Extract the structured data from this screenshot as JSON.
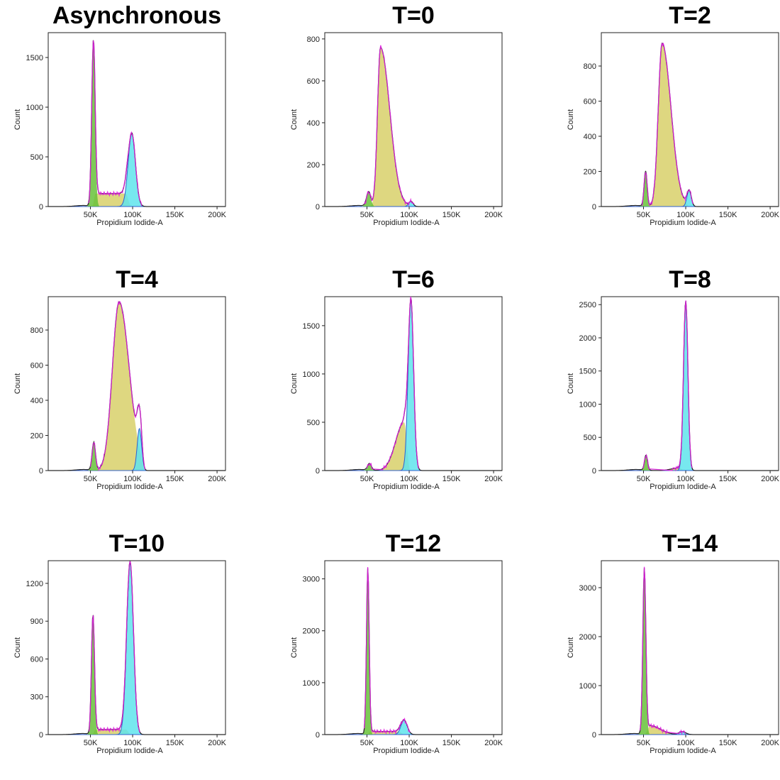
{
  "colors": {
    "g1_fill": "#67c23a",
    "s_fill": "#d8d06a",
    "g2_fill": "#5fe4ec",
    "fit_line": "#e020e0",
    "data_line": "#2a2a2a",
    "g2_edge": "#3060d0"
  },
  "chart_data": [
    {
      "type": "area",
      "title": "Asynchronous",
      "xlabel": "Propidium Iodide-A",
      "ylabel": "Count",
      "xticks": [
        {
          "v": 50000,
          "label": "50K"
        },
        {
          "v": 100000,
          "label": "100K"
        },
        {
          "v": 150000,
          "label": "150K"
        },
        {
          "v": 200000,
          "label": "200K"
        }
      ],
      "yticks": [
        0,
        500,
        1000,
        1500
      ],
      "xlim": [
        0,
        210000
      ],
      "ylim": [
        0,
        1750
      ],
      "g1": {
        "mean": 53500,
        "sd": 2000,
        "height": 1650
      },
      "s": {
        "start": 56000,
        "end": 92000,
        "height": 130
      },
      "g2": {
        "mean": 99000,
        "sd": 4300,
        "height": 740
      },
      "fit_peak": 1720
    },
    {
      "type": "area",
      "title": "T=0",
      "xlabel": "Propidium Iodide-A",
      "ylabel": "Count",
      "xticks": [
        {
          "v": 50000,
          "label": "50K"
        },
        {
          "v": 100000,
          "label": "100K"
        },
        {
          "v": 150000,
          "label": "150K"
        },
        {
          "v": 200000,
          "label": "200K"
        }
      ],
      "yticks": [
        0,
        200,
        400,
        600,
        800
      ],
      "xlim": [
        0,
        210000
      ],
      "ylim": [
        0,
        830
      ],
      "g1": {
        "mean": 52000,
        "sd": 2500,
        "height": 70
      },
      "s": {
        "start": 55000,
        "end": 96000,
        "height": 760,
        "peak_at": 66000,
        "rise_sd": 3500,
        "fall_sd": 11000
      },
      "g2": {
        "mean": 102000,
        "sd": 2600,
        "height": 25
      },
      "fit_peak": 820
    },
    {
      "type": "area",
      "title": "T=2",
      "xlabel": "Propidium Iodide-A",
      "ylabel": "Count",
      "xticks": [
        {
          "v": 50000,
          "label": "50K"
        },
        {
          "v": 100000,
          "label": "100K"
        },
        {
          "v": 150000,
          "label": "150K"
        },
        {
          "v": 200000,
          "label": "200K"
        }
      ],
      "yticks": [
        0,
        200,
        400,
        600,
        800
      ],
      "xlim": [
        0,
        210000
      ],
      "ylim": [
        0,
        990
      ],
      "g1": {
        "mean": 52500,
        "sd": 1800,
        "height": 200
      },
      "s": {
        "start": 56000,
        "end": 100000,
        "height": 930,
        "peak_at": 72000,
        "rise_sd": 4500,
        "fall_sd": 10500
      },
      "g2": {
        "mean": 104000,
        "sd": 2500,
        "height": 95
      },
      "fit_peak": 980
    },
    {
      "type": "area",
      "title": "T=4",
      "xlabel": "Propidium Iodide-A",
      "ylabel": "Count",
      "xticks": [
        {
          "v": 50000,
          "label": "50K"
        },
        {
          "v": 100000,
          "label": "100K"
        },
        {
          "v": 150000,
          "label": "150K"
        },
        {
          "v": 200000,
          "label": "200K"
        }
      ],
      "yticks": [
        0,
        200,
        400,
        600,
        800
      ],
      "xlim": [
        0,
        210000
      ],
      "ylim": [
        0,
        990
      ],
      "g1": {
        "mean": 54000,
        "sd": 2000,
        "height": 160
      },
      "s": {
        "start": 57000,
        "end": 110000,
        "height": 960,
        "peak_at": 84000,
        "rise_sd": 8000,
        "fall_sd": 12000
      },
      "g2": {
        "mean": 108000,
        "sd": 2600,
        "height": 240
      },
      "fit_peak": 980
    },
    {
      "type": "area",
      "title": "T=6",
      "xlabel": "Propidium Iodide-A",
      "ylabel": "Count",
      "xticks": [
        {
          "v": 50000,
          "label": "50K"
        },
        {
          "v": 100000,
          "label": "100K"
        },
        {
          "v": 150000,
          "label": "150K"
        },
        {
          "v": 200000,
          "label": "200K"
        }
      ],
      "yticks": [
        0,
        500,
        1000,
        1500
      ],
      "xlim": [
        0,
        210000
      ],
      "ylim": [
        0,
        1800
      ],
      "g1": {
        "mean": 53000,
        "sd": 2300,
        "height": 70
      },
      "s": {
        "start": 56000,
        "end": 98000,
        "height": 500,
        "peak_at": 94000,
        "rise_sd": 10000,
        "fall_sd": 3000
      },
      "g2": {
        "mean": 102000,
        "sd": 3200,
        "height": 1790
      },
      "fit_peak": 1800
    },
    {
      "type": "area",
      "title": "T=8",
      "xlabel": "Propidium Iodide-A",
      "ylabel": "Count",
      "xticks": [
        {
          "v": 50000,
          "label": "50K"
        },
        {
          "v": 100000,
          "label": "100K"
        },
        {
          "v": 150000,
          "label": "150K"
        },
        {
          "v": 200000,
          "label": "200K"
        }
      ],
      "yticks": [
        0,
        500,
        1000,
        1500,
        2000,
        2500
      ],
      "xlim": [
        0,
        210000
      ],
      "ylim": [
        0,
        2620
      ],
      "g1": {
        "mean": 53000,
        "sd": 1800,
        "height": 230
      },
      "s": {
        "start": 56000,
        "end": 96000,
        "height": 40,
        "peak_at": 92000,
        "rise_sd": 9000,
        "fall_sd": 3000
      },
      "g2": {
        "mean": 100000,
        "sd": 2600,
        "height": 2560
      },
      "fit_peak": 2580
    },
    {
      "type": "area",
      "title": "T=10",
      "xlabel": "Propidium Iodide-A",
      "ylabel": "Count",
      "xticks": [
        {
          "v": 50000,
          "label": "50K"
        },
        {
          "v": 100000,
          "label": "100K"
        },
        {
          "v": 150000,
          "label": "150K"
        },
        {
          "v": 200000,
          "label": "200K"
        }
      ],
      "yticks": [
        0,
        300,
        600,
        900,
        1200
      ],
      "xlim": [
        0,
        210000
      ],
      "ylim": [
        0,
        1380
      ],
      "g1": {
        "mean": 53000,
        "sd": 1800,
        "height": 950
      },
      "s": {
        "start": 56000,
        "end": 92000,
        "height": 40
      },
      "g2": {
        "mean": 97000,
        "sd": 4000,
        "height": 1370
      },
      "fit_peak": 1380
    },
    {
      "type": "area",
      "title": "T=12",
      "xlabel": "Propidium Iodide-A",
      "ylabel": "Count",
      "xticks": [
        {
          "v": 50000,
          "label": "50K"
        },
        {
          "v": 100000,
          "label": "100K"
        },
        {
          "v": 150000,
          "label": "150K"
        },
        {
          "v": 200000,
          "label": "200K"
        }
      ],
      "yticks": [
        0,
        1000,
        2000,
        3000
      ],
      "xlim": [
        0,
        210000
      ],
      "ylim": [
        0,
        3350
      ],
      "g1": {
        "mean": 51000,
        "sd": 1600,
        "height": 3200
      },
      "s": {
        "start": 54000,
        "end": 88000,
        "height": 60
      },
      "g2": {
        "mean": 94000,
        "sd": 3700,
        "height": 280
      },
      "fit_peak": 3250
    },
    {
      "type": "area",
      "title": "T=14",
      "xlabel": "Propidium Iodide-A",
      "ylabel": "Count",
      "xticks": [
        {
          "v": 50000,
          "label": "50K"
        },
        {
          "v": 100000,
          "label": "100K"
        },
        {
          "v": 150000,
          "label": "150K"
        },
        {
          "v": 200000,
          "label": "200K"
        }
      ],
      "yticks": [
        0,
        1000,
        2000,
        3000
      ],
      "xlim": [
        0,
        210000
      ],
      "ylim": [
        0,
        3550
      ],
      "g1": {
        "mean": 51000,
        "sd": 1800,
        "height": 3400
      },
      "s": {
        "start": 54000,
        "end": 90000,
        "height": 180,
        "peak_at": 58000,
        "rise_sd": 3000,
        "fall_sd": 12000
      },
      "g2": {
        "mean": 96000,
        "sd": 4000,
        "height": 60
      },
      "fit_peak": 3500
    }
  ]
}
